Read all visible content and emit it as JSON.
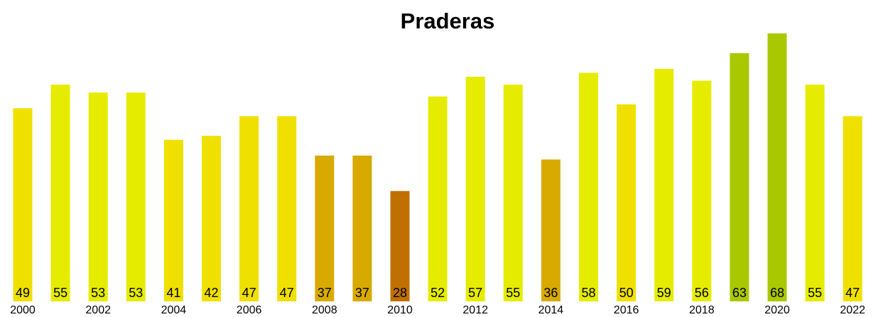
{
  "chart_data": {
    "type": "bar",
    "title": "Praderas",
    "categories": [
      "2000",
      null,
      "2002",
      null,
      "2004",
      null,
      "2006",
      null,
      "2008",
      null,
      "2010",
      null,
      "2012",
      null,
      "2014",
      null,
      "2016",
      null,
      "2018",
      null,
      "2020",
      null,
      "2022"
    ],
    "values": [
      49,
      55,
      53,
      53,
      41,
      42,
      47,
      47,
      37,
      37,
      28,
      52,
      57,
      55,
      36,
      58,
      50,
      59,
      56,
      63,
      68,
      55,
      47
    ],
    "colors": [
      "#f0e000",
      "#e5ec00",
      "#e5ec00",
      "#e5ec00",
      "#f0e000",
      "#f0e000",
      "#f0e000",
      "#f0e000",
      "#d8aa00",
      "#d8aa00",
      "#c07000",
      "#e5ec00",
      "#e5ec00",
      "#e5ec00",
      "#d8aa00",
      "#e5ec00",
      "#f0e000",
      "#e5ec00",
      "#e5ec00",
      "#aac800",
      "#aac800",
      "#e5ec00",
      "#f0e000"
    ]
  }
}
